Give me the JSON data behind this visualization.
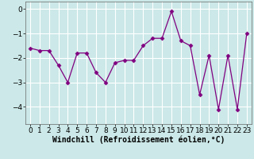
{
  "x": [
    0,
    1,
    2,
    3,
    4,
    5,
    6,
    7,
    8,
    9,
    10,
    11,
    12,
    13,
    14,
    15,
    16,
    17,
    18,
    19,
    20,
    21,
    22,
    23
  ],
  "y": [
    -1.6,
    -1.7,
    -1.7,
    -2.3,
    -3.0,
    -1.8,
    -1.8,
    -2.6,
    -3.0,
    -2.2,
    -2.1,
    -2.1,
    -1.5,
    -1.2,
    -1.2,
    -0.1,
    -1.3,
    -1.5,
    -3.5,
    -1.9,
    -4.1,
    -1.9,
    -4.1,
    -1.0
  ],
  "line_color": "#800080",
  "marker": "D",
  "marker_size": 2.5,
  "bg_color": "#cce8e8",
  "grid_color": "#ffffff",
  "xlabel": "Windchill (Refroidissement éolien,°C)",
  "xlabel_fontsize": 7,
  "tick_fontsize": 6.5,
  "ylim": [
    -4.7,
    0.3
  ],
  "yticks": [
    0,
    -1,
    -2,
    -3,
    -4
  ],
  "xlim": [
    -0.5,
    23.5
  ],
  "xticks": [
    0,
    1,
    2,
    3,
    4,
    5,
    6,
    7,
    8,
    9,
    10,
    11,
    12,
    13,
    14,
    15,
    16,
    17,
    18,
    19,
    20,
    21,
    22,
    23
  ]
}
